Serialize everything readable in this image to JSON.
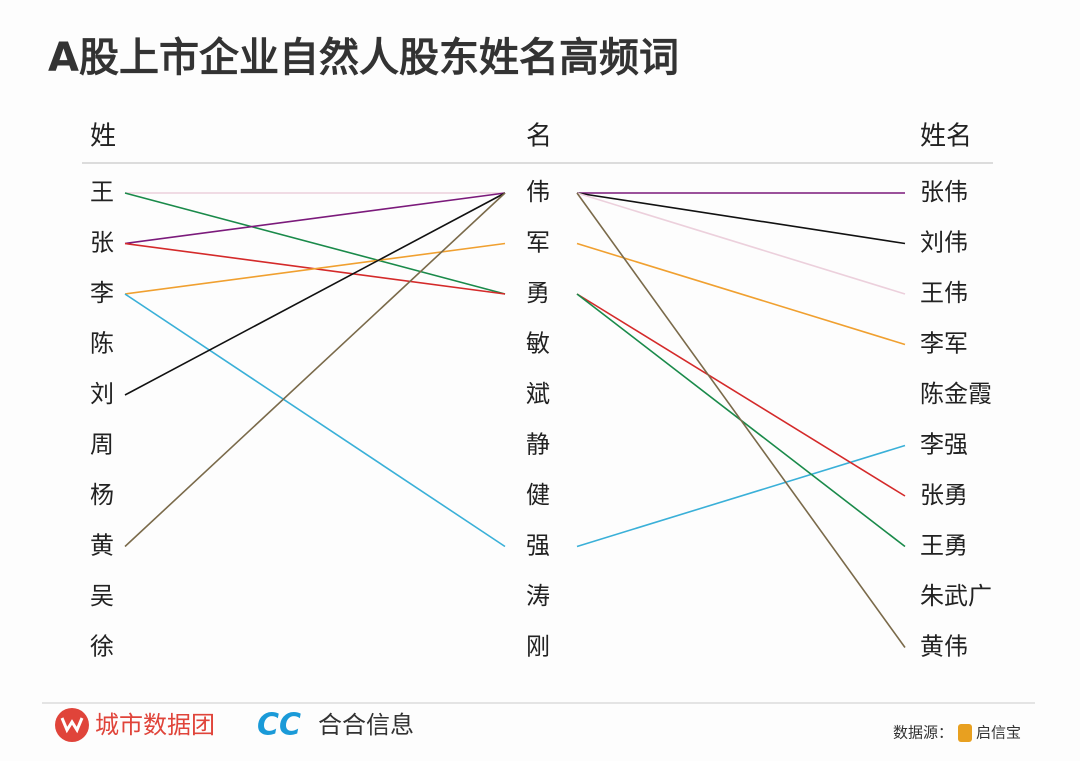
{
  "title": "A股上市企业自然人股东姓名高频词",
  "columns": [
    {
      "header": "姓",
      "items": [
        "王",
        "张",
        "李",
        "陈",
        "刘",
        "周",
        "杨",
        "黄",
        "吴",
        "徐"
      ]
    },
    {
      "header": "名",
      "items": [
        "伟",
        "军",
        "勇",
        "敏",
        "斌",
        "静",
        "健",
        "强",
        "涛",
        "刚"
      ]
    },
    {
      "header": "姓名",
      "items": [
        "张伟",
        "刘伟",
        "王伟",
        "李军",
        "陈金霞",
        "李强",
        "张勇",
        "王勇",
        "朱武广",
        "黄伟"
      ]
    }
  ],
  "links_left": [
    {
      "from": 0,
      "to": 0,
      "color": "#ecd0dc"
    },
    {
      "from": 0,
      "to": 2,
      "color": "#1a8a4a"
    },
    {
      "from": 1,
      "to": 0,
      "color": "#7b1a7b"
    },
    {
      "from": 1,
      "to": 2,
      "color": "#d42a2a"
    },
    {
      "from": 2,
      "to": 1,
      "color": "#f0a030"
    },
    {
      "from": 2,
      "to": 7,
      "color": "#3ab0d8"
    },
    {
      "from": 4,
      "to": 0,
      "color": "#111111"
    },
    {
      "from": 7,
      "to": 0,
      "color": "#7a6a4a"
    }
  ],
  "links_right": [
    {
      "from": 0,
      "to": 0,
      "color": "#7b1a7b"
    },
    {
      "from": 0,
      "to": 1,
      "color": "#111111"
    },
    {
      "from": 0,
      "to": 2,
      "color": "#ecd0dc"
    },
    {
      "from": 1,
      "to": 3,
      "color": "#f0a030"
    },
    {
      "from": 7,
      "to": 5,
      "color": "#3ab0d8"
    },
    {
      "from": 2,
      "to": 6,
      "color": "#d42a2a"
    },
    {
      "from": 2,
      "to": 7,
      "color": "#1a8a4a"
    },
    {
      "from": 0,
      "to": 9,
      "color": "#7a6a4a"
    }
  ],
  "footer": {
    "brand1": "城市数据团",
    "logo2": "CC",
    "brand2": "合合信息",
    "source_label": "数据源：",
    "source": "启信宝"
  }
}
